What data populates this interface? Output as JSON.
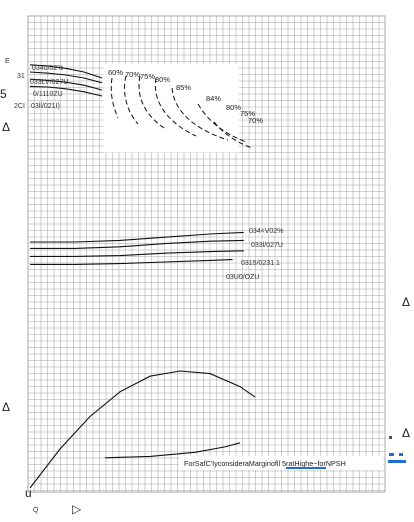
{
  "left_edge": {
    "glyph_e": "E",
    "glyph_5": "5",
    "glyph_31": "31",
    "label_2ci": "2CI",
    "tri_1": "Δ",
    "tri_2": "Δ"
  },
  "bottom_edge": {
    "u_label": "u",
    "q_label": "Q",
    "arrow": "▷"
  },
  "right_edge": {
    "tri_1": "Δ",
    "tri_2": "Δ"
  },
  "note": {
    "text": "ForSafC'IyconsideraMarginofll 5ratHighe~forNPSH",
    "underline_color": "#1f6fd1"
  },
  "chart_data": {
    "type": "line",
    "title": "",
    "xlabel": "",
    "ylabel": "",
    "x_range": [
      0,
      100
    ],
    "panels": [
      {
        "name": "head",
        "y_range": [
          0,
          100
        ],
        "series": [
          {
            "name": "0340/02%",
            "points": [
              [
                0,
                92
              ],
              [
                10,
                90
              ],
              [
                20,
                86
              ],
              [
                30,
                80
              ],
              [
                40,
                70
              ]
            ]
          },
          {
            "name": "033LV/027U",
            "points": [
              [
                0,
                80
              ],
              [
                10,
                78
              ],
              [
                20,
                75
              ],
              [
                30,
                70
              ],
              [
                40,
                62
              ]
            ]
          },
          {
            "name": "0/1110ZU",
            "points": [
              [
                0,
                68
              ],
              [
                10,
                66
              ],
              [
                20,
                63
              ],
              [
                30,
                58
              ],
              [
                40,
                50
              ]
            ]
          },
          {
            "name": "03ll/021I)",
            "points": [
              [
                0,
                56
              ],
              [
                10,
                55
              ],
              [
                20,
                52
              ],
              [
                30,
                47
              ],
              [
                40,
                40
              ]
            ]
          }
        ],
        "iso_efficiency": [
          "60%",
          "70%",
          "75%",
          "80%",
          "85%",
          "84%",
          "80%",
          "75%",
          "70%"
        ]
      },
      {
        "name": "power",
        "y_range": [
          0,
          100
        ],
        "series": [
          {
            "name": "034<V02%",
            "points": [
              [
                0,
                60
              ],
              [
                20,
                60
              ],
              [
                40,
                62
              ],
              [
                60,
                66
              ],
              [
                80,
                70
              ],
              [
                95,
                72
              ]
            ]
          },
          {
            "name": "033l/027U",
            "points": [
              [
                0,
                52
              ],
              [
                20,
                52
              ],
              [
                40,
                54
              ],
              [
                60,
                58
              ],
              [
                80,
                61
              ],
              [
                95,
                62
              ]
            ]
          },
          {
            "name": "0315/0231.1",
            "points": [
              [
                0,
                42
              ],
              [
                20,
                42
              ],
              [
                40,
                43
              ],
              [
                60,
                46
              ],
              [
                80,
                48
              ],
              [
                95,
                49
              ]
            ]
          },
          {
            "name": "03U0/OZU",
            "points": [
              [
                0,
                32
              ],
              [
                20,
                32
              ],
              [
                40,
                33
              ],
              [
                60,
                35
              ],
              [
                80,
                37
              ],
              [
                90,
                38
              ]
            ]
          }
        ]
      },
      {
        "name": "efficiency",
        "y_range": [
          0,
          100
        ],
        "series": [
          {
            "name": "",
            "points": [
              [
                0,
                0
              ],
              [
                10,
                30
              ],
              [
                20,
                55
              ],
              [
                30,
                74
              ],
              [
                40,
                86
              ],
              [
                50,
                90
              ],
              [
                60,
                88
              ],
              [
                70,
                78
              ],
              [
                75,
                70
              ]
            ]
          }
        ]
      },
      {
        "name": "npsh",
        "y_range": [
          0,
          100
        ],
        "series": [
          {
            "name": "",
            "points": [
              [
                25,
                18
              ],
              [
                40,
                20
              ],
              [
                55,
                26
              ],
              [
                65,
                34
              ],
              [
                70,
                40
              ]
            ]
          }
        ]
      }
    ]
  }
}
